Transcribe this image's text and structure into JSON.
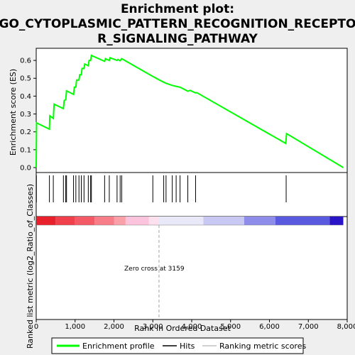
{
  "chart_data": {
    "type": "line",
    "title": "Enrichment plot:",
    "subtitle_lines": [
      "GO_CYTOPLASMIC_PATTERN_RECOGNITION_RECEPTO",
      "R_SIGNALING_PATHWAY"
    ],
    "ylabel": "Enrichment score (ES)",
    "ylabel_bottom": "Ranked list metric (log2_Ratio_of_Classes)",
    "xlabel": "Rank in Ordered Dataset",
    "xlim": [
      0,
      8000
    ],
    "ylim": [
      0,
      0.65
    ],
    "yticks": [
      "0.0",
      "0.1",
      "0.2",
      "0.3",
      "0.4",
      "0.5",
      "0.6"
    ],
    "xticks": [
      "0",
      "1,000",
      "2,000",
      "3,000",
      "4,000",
      "5,000",
      "6,000",
      "7,000",
      "8,000"
    ],
    "zero_cross_label": "Zero cross at 3159",
    "zero_cross": 3159,
    "n_genes": 7900,
    "es_points": [
      [
        0,
        0.0
      ],
      [
        10,
        0.25
      ],
      [
        340,
        0.215
      ],
      [
        350,
        0.29
      ],
      [
        440,
        0.275
      ],
      [
        460,
        0.355
      ],
      [
        700,
        0.33
      ],
      [
        720,
        0.375
      ],
      [
        760,
        0.38
      ],
      [
        780,
        0.43
      ],
      [
        960,
        0.41
      ],
      [
        980,
        0.45
      ],
      [
        1020,
        0.45
      ],
      [
        1040,
        0.49
      ],
      [
        1100,
        0.49
      ],
      [
        1120,
        0.52
      ],
      [
        1160,
        0.52
      ],
      [
        1180,
        0.555
      ],
      [
        1230,
        0.555
      ],
      [
        1250,
        0.58
      ],
      [
        1340,
        0.57
      ],
      [
        1360,
        0.6
      ],
      [
        1400,
        0.6
      ],
      [
        1420,
        0.628
      ],
      [
        1760,
        0.595
      ],
      [
        1780,
        0.61
      ],
      [
        1880,
        0.6
      ],
      [
        1900,
        0.615
      ],
      [
        2080,
        0.6
      ],
      [
        2100,
        0.605
      ],
      [
        2160,
        0.598
      ],
      [
        2200,
        0.61
      ],
      [
        3000,
        0.51
      ],
      [
        3280,
        0.478
      ],
      [
        3340,
        0.472
      ],
      [
        3500,
        0.46
      ],
      [
        3600,
        0.455
      ],
      [
        3700,
        0.45
      ],
      [
        3900,
        0.428
      ],
      [
        3960,
        0.432
      ],
      [
        4100,
        0.418
      ],
      [
        4130,
        0.42
      ],
      [
        6420,
        0.135
      ],
      [
        6440,
        0.19
      ],
      [
        7900,
        0.0
      ]
    ],
    "hits": [
      5,
      340,
      440,
      700,
      760,
      780,
      960,
      1020,
      1100,
      1160,
      1230,
      1340,
      1400,
      1420,
      1760,
      1880,
      2080,
      2160,
      2200,
      3000,
      3280,
      3340,
      3500,
      3600,
      3700,
      3900,
      4100,
      6430
    ],
    "metric_bands": [
      [
        0,
        500,
        "#e8202c"
      ],
      [
        500,
        1000,
        "#f0404c"
      ],
      [
        1000,
        1500,
        "#f45a66"
      ],
      [
        1500,
        2000,
        "#f77e88"
      ],
      [
        2000,
        2300,
        "#f9a0a8"
      ],
      [
        2300,
        2900,
        "#fbc4dc"
      ],
      [
        2900,
        3159,
        "#fde0ee"
      ],
      [
        3159,
        4300,
        "#e8e8f8"
      ],
      [
        4300,
        5350,
        "#c8c8f2"
      ],
      [
        5350,
        6150,
        "#8e8eea"
      ],
      [
        6150,
        7550,
        "#5a5ae0"
      ],
      [
        7550,
        7900,
        "#2a14c8"
      ]
    ],
    "legend": [
      "Enrichment profile",
      "Hits",
      "Ranking metric scores"
    ],
    "colors": {
      "profile": "#00ff00",
      "hits": "#000000",
      "ranking": "#c0c0c0",
      "zero_line": "#a0a0a0"
    },
    "grid": false,
    "legend_placement": "bottom"
  }
}
